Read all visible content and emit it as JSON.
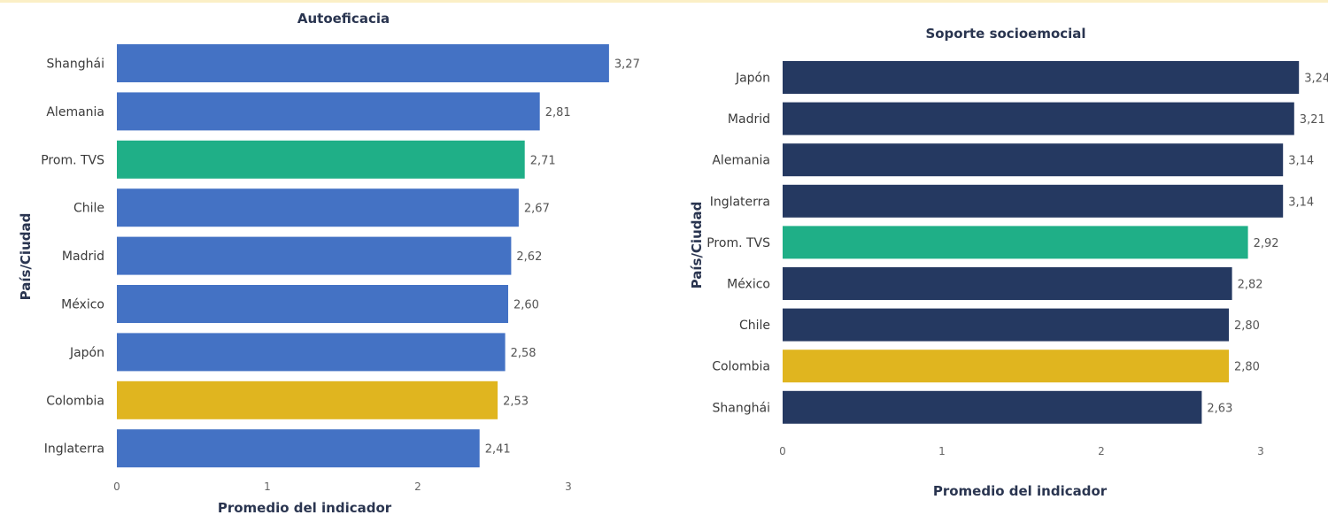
{
  "chart_data": [
    {
      "type": "bar",
      "orientation": "horizontal",
      "title": "Autoeficacia",
      "xlabel": "Promedio del indicador",
      "ylabel": "País/Ciudad",
      "xlim": [
        0,
        3.5
      ],
      "xticks": [
        "0",
        "1",
        "2",
        "3"
      ],
      "categories": [
        "Shanghái",
        "Alemania",
        "Prom. TVS",
        "Chile",
        "Madrid",
        "México",
        "Japón",
        "Colombia",
        "Inglaterra"
      ],
      "values": [
        3.27,
        2.81,
        2.71,
        2.67,
        2.62,
        2.6,
        2.58,
        2.53,
        2.41
      ],
      "value_labels": [
        "3,27",
        "2,81",
        "2,71",
        "2,67",
        "2,62",
        "2,60",
        "2,58",
        "2,53",
        "2,41"
      ],
      "colors": [
        "#4472c4",
        "#4472c4",
        "#1faf87",
        "#4472c4",
        "#4472c4",
        "#4472c4",
        "#4472c4",
        "#e0b51f",
        "#4472c4"
      ]
    },
    {
      "type": "bar",
      "orientation": "horizontal",
      "title": "Soporte socioemocial",
      "xlabel": "Promedio del indicador",
      "ylabel": "País/Ciudad",
      "xlim": [
        0,
        3.5
      ],
      "xticks": [
        "0",
        "1",
        "2",
        "3"
      ],
      "categories": [
        "Japón",
        "Madrid",
        "Alemania",
        "Inglaterra",
        "Prom. TVS",
        "México",
        "Chile",
        "Colombia",
        "Shanghái"
      ],
      "values": [
        3.24,
        3.21,
        3.14,
        3.14,
        2.92,
        2.82,
        2.8,
        2.8,
        2.63
      ],
      "value_labels": [
        "3,24",
        "3,21",
        "3,14",
        "3,14",
        "2,92",
        "2,82",
        "2,80",
        "2,80",
        "2,63"
      ],
      "colors": [
        "#253961",
        "#253961",
        "#253961",
        "#253961",
        "#1faf87",
        "#253961",
        "#253961",
        "#e0b51f",
        "#253961"
      ]
    }
  ]
}
